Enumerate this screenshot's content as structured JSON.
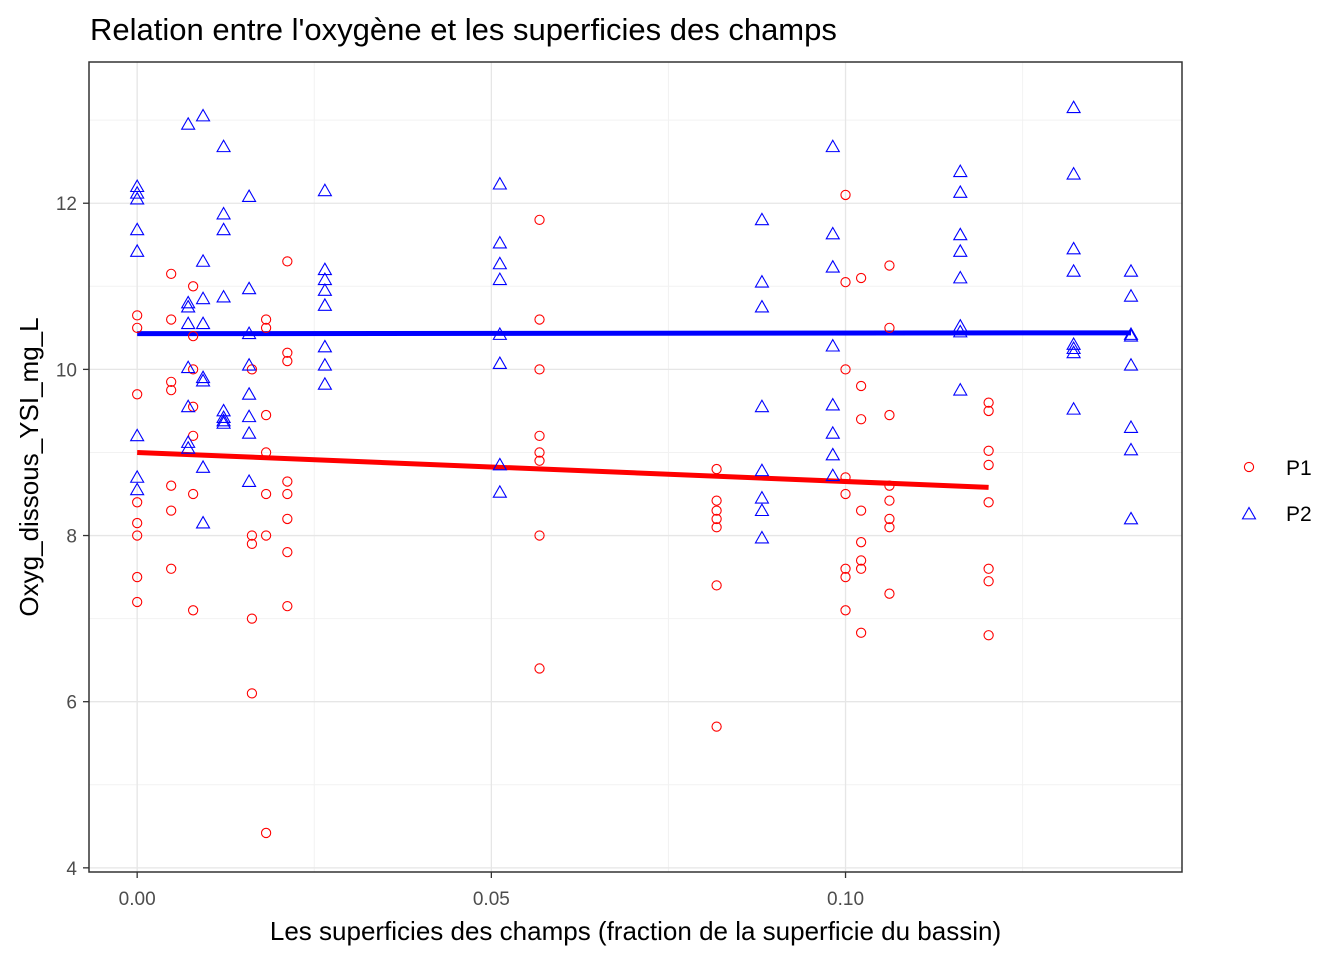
{
  "chart_data": {
    "type": "scatter",
    "title": "Relation entre l'oxygène et les superficies des champs",
    "xlabel": "Les superficies des champs (fraction de la superficie du bassin)",
    "ylabel": "Oxyg_dissous_YSI_mg_L",
    "xlim": [
      -0.0068,
      0.1475
    ],
    "ylim": [
      3.95,
      13.7
    ],
    "x_ticks": [
      "0.00",
      "0.05",
      "0.10"
    ],
    "x_tick_values": [
      0.0,
      0.05,
      0.1
    ],
    "y_ticks": [
      "4",
      "6",
      "8",
      "10",
      "12"
    ],
    "y_tick_values": [
      4,
      6,
      8,
      10,
      12
    ],
    "grid": true,
    "legend_position": "right",
    "series": [
      {
        "name": "P1",
        "marker": "circle",
        "color": "#ff0000",
        "points": [
          [
            0.0,
            10.65
          ],
          [
            0.0,
            10.5
          ],
          [
            0.0,
            9.7
          ],
          [
            0.0,
            8.4
          ],
          [
            0.0,
            8.15
          ],
          [
            0.0,
            8.0
          ],
          [
            0.0,
            7.5
          ],
          [
            0.0,
            7.2
          ],
          [
            0.0048,
            11.15
          ],
          [
            0.0048,
            10.6
          ],
          [
            0.0048,
            9.85
          ],
          [
            0.0048,
            9.75
          ],
          [
            0.0048,
            8.6
          ],
          [
            0.0048,
            8.3
          ],
          [
            0.0048,
            7.6
          ],
          [
            0.0079,
            11.0
          ],
          [
            0.0079,
            10.4
          ],
          [
            0.0079,
            10.0
          ],
          [
            0.0079,
            9.55
          ],
          [
            0.0079,
            9.2
          ],
          [
            0.0079,
            8.5
          ],
          [
            0.0079,
            7.1
          ],
          [
            0.0162,
            10.0
          ],
          [
            0.0162,
            8.0
          ],
          [
            0.0162,
            7.9
          ],
          [
            0.0162,
            7.0
          ],
          [
            0.0162,
            6.1
          ],
          [
            0.0182,
            10.6
          ],
          [
            0.0182,
            10.5
          ],
          [
            0.0182,
            9.45
          ],
          [
            0.0182,
            9.0
          ],
          [
            0.0182,
            8.5
          ],
          [
            0.0182,
            8.0
          ],
          [
            0.0182,
            4.42
          ],
          [
            0.0212,
            11.3
          ],
          [
            0.0212,
            10.2
          ],
          [
            0.0212,
            10.1
          ],
          [
            0.0212,
            8.65
          ],
          [
            0.0212,
            8.5
          ],
          [
            0.0212,
            8.2
          ],
          [
            0.0212,
            7.8
          ],
          [
            0.0212,
            7.15
          ],
          [
            0.0568,
            11.8
          ],
          [
            0.0568,
            10.6
          ],
          [
            0.0568,
            10.0
          ],
          [
            0.0568,
            9.2
          ],
          [
            0.0568,
            9.0
          ],
          [
            0.0568,
            8.9
          ],
          [
            0.0568,
            8.0
          ],
          [
            0.0568,
            6.4
          ],
          [
            0.0818,
            8.8
          ],
          [
            0.0818,
            8.42
          ],
          [
            0.0818,
            8.3
          ],
          [
            0.0818,
            8.2
          ],
          [
            0.0818,
            8.1
          ],
          [
            0.0818,
            7.4
          ],
          [
            0.0818,
            5.7
          ],
          [
            0.1,
            12.1
          ],
          [
            0.1,
            11.05
          ],
          [
            0.1,
            10.0
          ],
          [
            0.1,
            8.7
          ],
          [
            0.1,
            8.5
          ],
          [
            0.1,
            7.6
          ],
          [
            0.1,
            7.5
          ],
          [
            0.1,
            7.1
          ],
          [
            0.1022,
            11.1
          ],
          [
            0.1022,
            9.8
          ],
          [
            0.1022,
            9.4
          ],
          [
            0.1022,
            8.3
          ],
          [
            0.1022,
            7.92
          ],
          [
            0.1022,
            7.7
          ],
          [
            0.1022,
            7.6
          ],
          [
            0.1022,
            6.83
          ],
          [
            0.1062,
            11.25
          ],
          [
            0.1062,
            10.5
          ],
          [
            0.1062,
            9.45
          ],
          [
            0.1062,
            8.6
          ],
          [
            0.1062,
            8.42
          ],
          [
            0.1062,
            8.2
          ],
          [
            0.1062,
            8.1
          ],
          [
            0.1062,
            7.3
          ],
          [
            0.1202,
            9.6
          ],
          [
            0.1202,
            9.5
          ],
          [
            0.1202,
            9.02
          ],
          [
            0.1202,
            8.85
          ],
          [
            0.1202,
            8.4
          ],
          [
            0.1202,
            7.6
          ],
          [
            0.1202,
            7.45
          ],
          [
            0.1202,
            6.8
          ]
        ],
        "trend": {
          "x": [
            0.0,
            0.1202
          ],
          "y": [
            9.0,
            8.58
          ]
        }
      },
      {
        "name": "P2",
        "marker": "triangle",
        "color": "#0000ff",
        "points": [
          [
            0.0,
            12.2
          ],
          [
            0.0,
            12.12
          ],
          [
            0.0,
            12.05
          ],
          [
            0.0,
            11.68
          ],
          [
            0.0,
            11.42
          ],
          [
            0.0,
            9.2
          ],
          [
            0.0,
            8.7
          ],
          [
            0.0,
            8.55
          ],
          [
            0.0072,
            12.95
          ],
          [
            0.0072,
            10.8
          ],
          [
            0.0072,
            10.75
          ],
          [
            0.0072,
            10.55
          ],
          [
            0.0072,
            10.02
          ],
          [
            0.0072,
            9.55
          ],
          [
            0.0072,
            9.12
          ],
          [
            0.0072,
            9.05
          ],
          [
            0.0093,
            13.05
          ],
          [
            0.0093,
            11.3
          ],
          [
            0.0093,
            10.85
          ],
          [
            0.0093,
            10.55
          ],
          [
            0.0093,
            9.9
          ],
          [
            0.0093,
            9.86
          ],
          [
            0.0093,
            8.82
          ],
          [
            0.0093,
            8.15
          ],
          [
            0.0122,
            12.68
          ],
          [
            0.0122,
            11.87
          ],
          [
            0.0122,
            11.68
          ],
          [
            0.0122,
            10.87
          ],
          [
            0.0122,
            9.5
          ],
          [
            0.0122,
            9.42
          ],
          [
            0.0122,
            9.38
          ],
          [
            0.0122,
            9.35
          ],
          [
            0.0158,
            12.08
          ],
          [
            0.0158,
            10.97
          ],
          [
            0.0158,
            10.43
          ],
          [
            0.0158,
            10.05
          ],
          [
            0.0158,
            9.7
          ],
          [
            0.0158,
            9.43
          ],
          [
            0.0158,
            9.23
          ],
          [
            0.0158,
            8.65
          ],
          [
            0.0265,
            12.15
          ],
          [
            0.0265,
            11.2
          ],
          [
            0.0265,
            11.08
          ],
          [
            0.0265,
            10.95
          ],
          [
            0.0265,
            10.77
          ],
          [
            0.0265,
            10.27
          ],
          [
            0.0265,
            10.05
          ],
          [
            0.0265,
            9.82
          ],
          [
            0.0512,
            12.23
          ],
          [
            0.0512,
            11.52
          ],
          [
            0.0512,
            11.27
          ],
          [
            0.0512,
            11.08
          ],
          [
            0.0512,
            10.42
          ],
          [
            0.0512,
            10.07
          ],
          [
            0.0512,
            8.85
          ],
          [
            0.0512,
            8.52
          ],
          [
            0.0882,
            11.8
          ],
          [
            0.0882,
            11.05
          ],
          [
            0.0882,
            10.75
          ],
          [
            0.0882,
            9.55
          ],
          [
            0.0882,
            8.78
          ],
          [
            0.0882,
            8.45
          ],
          [
            0.0882,
            8.3
          ],
          [
            0.0882,
            7.97
          ],
          [
            0.0982,
            12.68
          ],
          [
            0.0982,
            11.63
          ],
          [
            0.0982,
            11.23
          ],
          [
            0.0982,
            10.28
          ],
          [
            0.0982,
            9.57
          ],
          [
            0.0982,
            9.23
          ],
          [
            0.0982,
            8.97
          ],
          [
            0.0982,
            8.72
          ],
          [
            0.1162,
            12.38
          ],
          [
            0.1162,
            12.13
          ],
          [
            0.1162,
            11.62
          ],
          [
            0.1162,
            11.42
          ],
          [
            0.1162,
            11.1
          ],
          [
            0.1162,
            10.52
          ],
          [
            0.1162,
            10.45
          ],
          [
            0.1162,
            9.75
          ],
          [
            0.1322,
            13.15
          ],
          [
            0.1322,
            12.35
          ],
          [
            0.1322,
            11.45
          ],
          [
            0.1322,
            11.18
          ],
          [
            0.1322,
            10.3
          ],
          [
            0.1322,
            10.25
          ],
          [
            0.1322,
            10.2
          ],
          [
            0.1322,
            9.52
          ],
          [
            0.1403,
            11.18
          ],
          [
            0.1403,
            10.88
          ],
          [
            0.1403,
            10.42
          ],
          [
            0.1403,
            10.4
          ],
          [
            0.1403,
            10.05
          ],
          [
            0.1403,
            9.3
          ],
          [
            0.1403,
            9.03
          ],
          [
            0.1403,
            8.2
          ]
        ],
        "trend": {
          "x": [
            0.0,
            0.1403
          ],
          "y": [
            10.43,
            10.44
          ]
        }
      }
    ]
  }
}
